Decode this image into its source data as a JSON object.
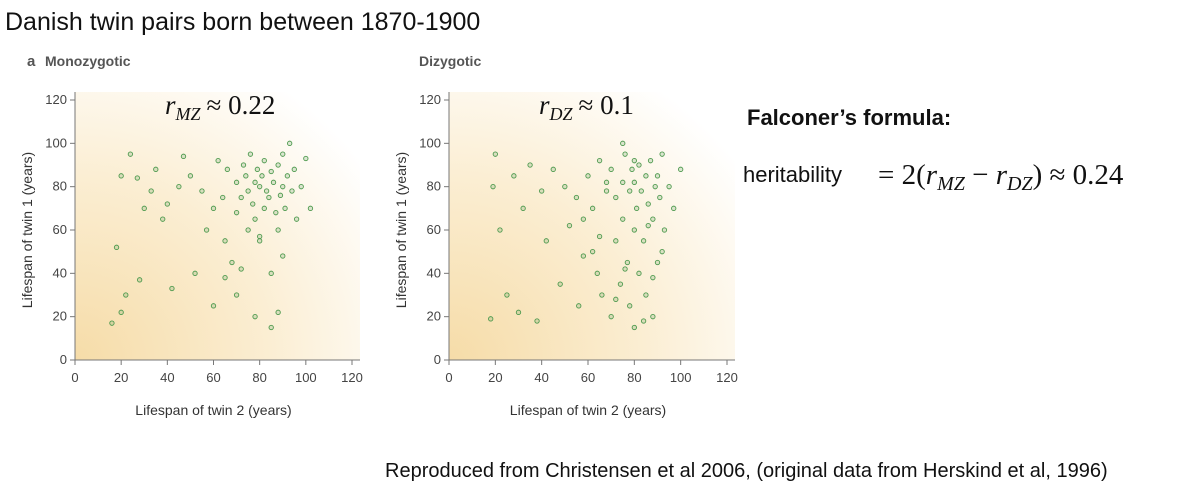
{
  "title": "Danish twin pairs born between 1870-1900",
  "formula": {
    "heading": "Falconer’s formula:",
    "lhs": "heritability",
    "parts": [
      "= 2(",
      "r",
      "MZ",
      " − ",
      "r",
      "DZ",
      ") ≈ 0.24"
    ]
  },
  "footer": "Reproduced from Christensen et al 2006, (original data from Herskind et al, 1996)",
  "chart_data": [
    {
      "type": "scatter",
      "panel_label": "a",
      "title": "Monozygotic",
      "annotation": {
        "symbol": "r",
        "subscript": "MZ",
        "relation": "≈ 0.22"
      },
      "xlabel": "Lifespan of twin 2 (years)",
      "ylabel": "Lifespan of twin 1 (years)",
      "color": "#4f9a4f",
      "x": [
        16,
        18,
        20,
        22,
        20,
        24,
        27,
        30,
        28,
        33,
        35,
        38,
        40,
        42,
        45,
        47,
        50,
        52,
        55,
        57,
        60,
        62,
        64,
        65,
        66,
        68,
        70,
        70,
        72,
        73,
        74,
        75,
        75,
        76,
        77,
        78,
        78,
        79,
        80,
        80,
        81,
        82,
        82,
        83,
        84,
        85,
        85,
        86,
        87,
        88,
        88,
        89,
        90,
        90,
        91,
        92,
        93,
        94,
        95,
        96,
        98,
        100,
        102,
        60,
        70,
        78,
        85,
        88,
        90,
        65,
        72,
        80
      ],
      "values": [
        17,
        52,
        85,
        30,
        22,
        95,
        84,
        70,
        37,
        78,
        88,
        65,
        72,
        33,
        80,
        94,
        85,
        40,
        78,
        60,
        70,
        92,
        75,
        55,
        88,
        45,
        82,
        68,
        75,
        90,
        85,
        60,
        78,
        95,
        72,
        82,
        65,
        88,
        80,
        55,
        85,
        70,
        92,
        78,
        75,
        87,
        40,
        82,
        68,
        90,
        60,
        76,
        80,
        95,
        70,
        85,
        100,
        78,
        88,
        65,
        80,
        93,
        70,
        25,
        30,
        20,
        15,
        22,
        48,
        38,
        42,
        57
      ],
      "xlim": [
        0,
        120
      ],
      "ylim": [
        0,
        120
      ],
      "xticks": [
        0,
        20,
        40,
        60,
        80,
        100,
        120
      ],
      "yticks": [
        0,
        20,
        40,
        60,
        80,
        100,
        120
      ]
    },
    {
      "type": "scatter",
      "title": "Dizygotic",
      "annotation": {
        "symbol": "r",
        "subscript": "DZ",
        "relation": "≈ 0.1"
      },
      "xlabel": "Lifespan of twin 2 (years)",
      "ylabel": "Lifespan of twin 1 (years)",
      "color": "#4f9a4f",
      "x": [
        18,
        19,
        20,
        22,
        25,
        28,
        30,
        32,
        35,
        38,
        40,
        42,
        45,
        48,
        50,
        52,
        55,
        56,
        58,
        60,
        62,
        64,
        65,
        66,
        68,
        70,
        70,
        72,
        72,
        74,
        75,
        75,
        76,
        77,
        78,
        78,
        79,
        80,
        80,
        80,
        81,
        82,
        82,
        83,
        84,
        85,
        85,
        86,
        87,
        88,
        88,
        89,
        90,
        90,
        91,
        92,
        93,
        95,
        97,
        100,
        58,
        62,
        68,
        72,
        76,
        80,
        84,
        88,
        92,
        75,
        86,
        65
      ],
      "values": [
        19,
        80,
        95,
        60,
        30,
        85,
        22,
        70,
        90,
        18,
        78,
        55,
        88,
        35,
        80,
        62,
        75,
        25,
        48,
        85,
        70,
        40,
        92,
        30,
        78,
        20,
        88,
        55,
        75,
        35,
        82,
        65,
        95,
        45,
        78,
        25,
        88,
        60,
        82,
        15,
        70,
        90,
        40,
        78,
        55,
        85,
        30,
        72,
        92,
        65,
        20,
        80,
        85,
        45,
        75,
        95,
        60,
        80,
        70,
        88,
        65,
        50,
        82,
        28,
        42,
        92,
        18,
        38,
        50,
        100,
        62,
        57
      ],
      "xlim": [
        0,
        120
      ],
      "ylim": [
        0,
        120
      ],
      "xticks": [
        0,
        20,
        40,
        60,
        80,
        100,
        120
      ],
      "yticks": [
        0,
        20,
        40,
        60,
        80,
        100,
        120
      ]
    }
  ]
}
